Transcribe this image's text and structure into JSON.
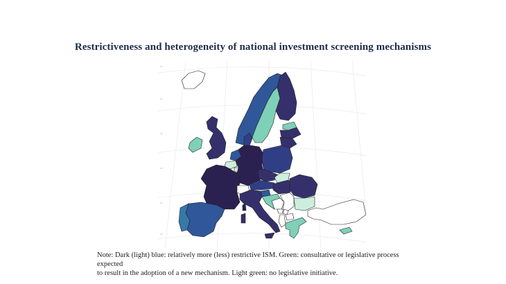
{
  "title": "Restrictiveness and heterogeneity of national investment screening mechanisms",
  "note": {
    "line1": "Note: Dark (light) blue: relatively more (less) restrictive ISM. Green: consultative or legislative process expected",
    "line2": "to result in the adoption of a new mechanism. Light green: no legislative initiative."
  },
  "legend_colors": {
    "most_restrictive": "#2b2150",
    "restrictive": "#35306b",
    "moderate": "#303f85",
    "less_restrictive": "#30579a",
    "least_restrictive": "#3679a6",
    "legislative_process": "#7fd0b8",
    "no_initiative": "#cdeede",
    "non_eu": "#ffffff"
  },
  "countries": [
    {
      "name": "France",
      "category": "most_restrictive"
    },
    {
      "name": "Germany",
      "category": "most_restrictive"
    },
    {
      "name": "Italy",
      "category": "restrictive"
    },
    {
      "name": "United Kingdom",
      "category": "restrictive"
    },
    {
      "name": "Finland",
      "category": "restrictive"
    },
    {
      "name": "Latvia",
      "category": "restrictive"
    },
    {
      "name": "Lithuania",
      "category": "restrictive"
    },
    {
      "name": "Hungary",
      "category": "restrictive"
    },
    {
      "name": "Romania",
      "category": "restrictive"
    },
    {
      "name": "Czechia",
      "category": "restrictive"
    },
    {
      "name": "Poland",
      "category": "moderate"
    },
    {
      "name": "Austria",
      "category": "moderate"
    },
    {
      "name": "Denmark",
      "category": "moderate"
    },
    {
      "name": "Spain",
      "category": "less_restrictive"
    },
    {
      "name": "Netherlands",
      "category": "less_restrictive"
    },
    {
      "name": "Slovenia",
      "category": "less_restrictive"
    },
    {
      "name": "Norway",
      "category": "less_restrictive"
    },
    {
      "name": "Portugal",
      "category": "least_restrictive"
    },
    {
      "name": "Sweden",
      "category": "legislative_process"
    },
    {
      "name": "Ireland",
      "category": "legislative_process"
    },
    {
      "name": "Estonia",
      "category": "legislative_process"
    },
    {
      "name": "Croatia",
      "category": "legislative_process"
    },
    {
      "name": "Greece",
      "category": "legislative_process"
    },
    {
      "name": "Cyprus",
      "category": "legislative_process"
    },
    {
      "name": "Belgium",
      "category": "no_initiative"
    },
    {
      "name": "Luxembourg",
      "category": "no_initiative"
    },
    {
      "name": "Slovakia",
      "category": "no_initiative"
    },
    {
      "name": "Bulgaria",
      "category": "no_initiative"
    },
    {
      "name": "Iceland",
      "category": "non_eu"
    },
    {
      "name": "Switzerland",
      "category": "non_eu"
    },
    {
      "name": "Serbia",
      "category": "non_eu"
    },
    {
      "name": "Bosnia and Herzegovina",
      "category": "non_eu"
    },
    {
      "name": "Montenegro",
      "category": "non_eu"
    },
    {
      "name": "Albania",
      "category": "non_eu"
    },
    {
      "name": "North Macedonia",
      "category": "non_eu"
    },
    {
      "name": "Kosovo",
      "category": "non_eu"
    },
    {
      "name": "Turkey",
      "category": "non_eu"
    }
  ]
}
